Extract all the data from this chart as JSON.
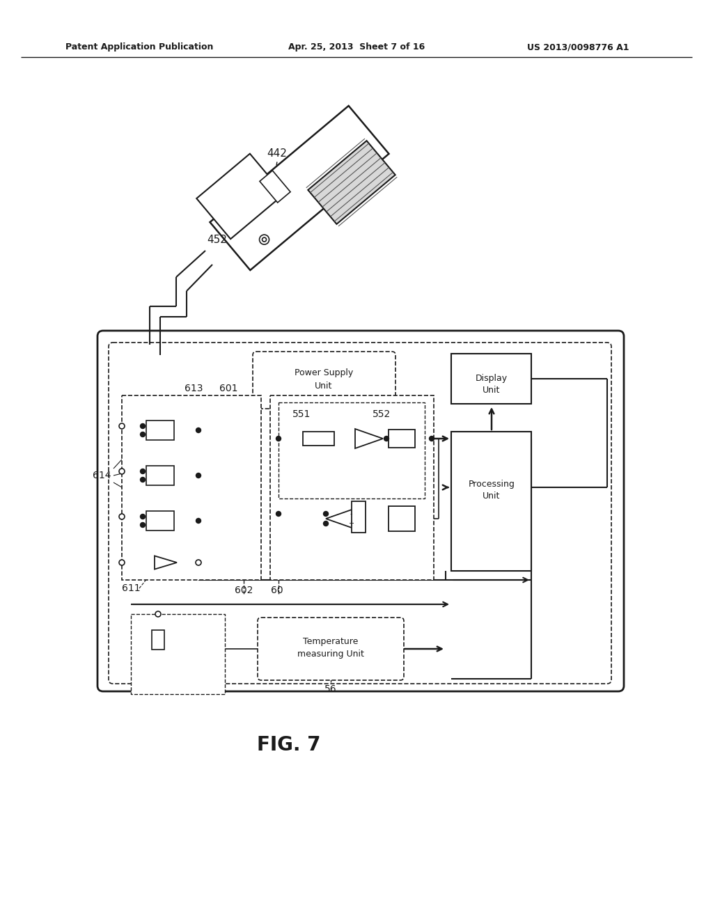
{
  "title_left": "Patent Application Publication",
  "title_center": "Apr. 25, 2013  Sheet 7 of 16",
  "title_right": "US 2013/0098776 A1",
  "fig_label": "FIG. 7",
  "label_442": "442",
  "label_452": "452",
  "label_613": "613",
  "label_601": "601",
  "label_614": "614",
  "label_611": "611",
  "label_602": "602",
  "label_60": "60",
  "label_551": "551",
  "label_552": "552",
  "label_56": "56",
  "bg_color": "#ffffff",
  "line_color": "#1a1a1a"
}
